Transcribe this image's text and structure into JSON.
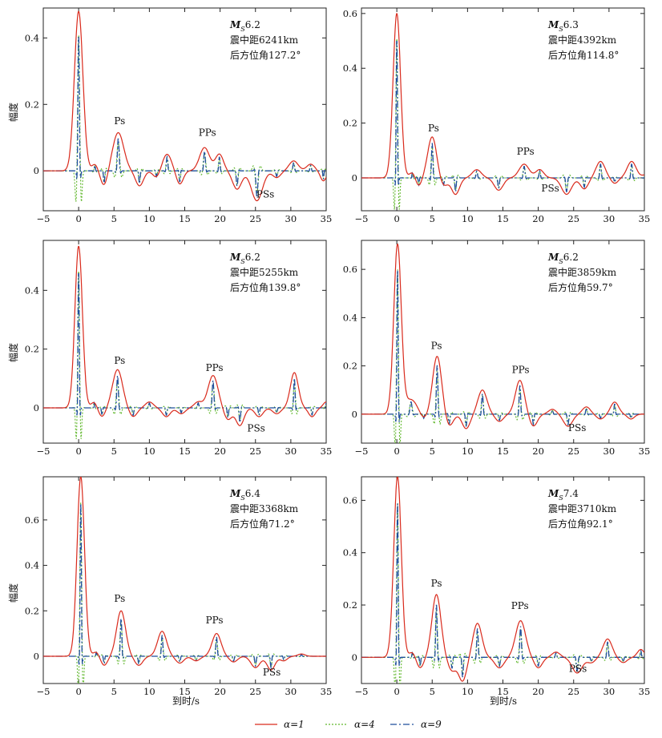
{
  "colors": {
    "alpha1": "#d92a1c",
    "alpha4": "#5fb72b",
    "alpha9": "#1f4e9c"
  },
  "axes": {
    "ylabel": "幅度",
    "xlabel": "到时/s"
  },
  "legend": {
    "alpha1": "α=1",
    "alpha4": "α=4",
    "alpha9": "α=9"
  },
  "chart_data": [
    {
      "type": "line",
      "title": "",
      "info": {
        "mag": "6.2",
        "distance": "震中距6241km",
        "baz": "后方位角127.2°"
      },
      "xlim": [
        -5,
        35
      ],
      "ylim": [
        -0.12,
        0.49
      ],
      "xticks": [
        -5,
        0,
        5,
        10,
        15,
        20,
        25,
        30,
        35
      ],
      "yticks": [
        0,
        0.2,
        0.4
      ],
      "phases": [
        {
          "label": "Ps",
          "x": 5.8,
          "y": 0.14
        },
        {
          "label": "PPs",
          "x": 18.2,
          "y": 0.105
        },
        {
          "label": "PSs",
          "x": 26.4,
          "y": -0.08
        }
      ],
      "components": [
        {
          "t": 0,
          "a": 0.48,
          "w": 0.85
        },
        {
          "t": 2.3,
          "a": 0.02,
          "w": 0.6
        },
        {
          "t": 3.6,
          "a": -0.045,
          "w": 0.7
        },
        {
          "t": 5.6,
          "a": 0.115,
          "w": 1.1
        },
        {
          "t": 8.6,
          "a": -0.045,
          "w": 0.8
        },
        {
          "t": 11,
          "a": -0.02,
          "w": 0.7
        },
        {
          "t": 12.5,
          "a": 0.05,
          "w": 0.9
        },
        {
          "t": 14.3,
          "a": -0.04,
          "w": 0.7
        },
        {
          "t": 17.8,
          "a": 0.07,
          "w": 1.0
        },
        {
          "t": 19.9,
          "a": 0.05,
          "w": 0.8
        },
        {
          "t": 22.4,
          "a": -0.055,
          "w": 0.9
        },
        {
          "t": 25.2,
          "a": -0.09,
          "w": 1.1
        },
        {
          "t": 28,
          "a": -0.02,
          "w": 0.8
        },
        {
          "t": 30.4,
          "a": 0.03,
          "w": 0.9
        },
        {
          "t": 32.8,
          "a": 0.02,
          "w": 0.8
        },
        {
          "t": 34.6,
          "a": -0.03,
          "w": 0.6
        }
      ]
    },
    {
      "type": "line",
      "title": "",
      "info": {
        "mag": "6.3",
        "distance": "震中距4392km",
        "baz": "后方位角114.8°"
      },
      "xlim": [
        -5,
        35
      ],
      "ylim": [
        -0.12,
        0.62
      ],
      "xticks": [
        -5,
        0,
        5,
        10,
        15,
        20,
        25,
        30,
        35
      ],
      "yticks": [
        0,
        0.2,
        0.4,
        0.6
      ],
      "phases": [
        {
          "label": "Ps",
          "x": 5.2,
          "y": 0.17
        },
        {
          "label": "PPs",
          "x": 18.2,
          "y": 0.085
        },
        {
          "label": "PSs",
          "x": 21.7,
          "y": -0.05
        }
      ],
      "components": [
        {
          "t": 0,
          "a": 0.6,
          "w": 0.75
        },
        {
          "t": 2.2,
          "a": 0.02,
          "w": 0.6
        },
        {
          "t": 3.1,
          "a": -0.03,
          "w": 0.6
        },
        {
          "t": 5,
          "a": 0.15,
          "w": 0.9
        },
        {
          "t": 6.6,
          "a": -0.03,
          "w": 0.8
        },
        {
          "t": 8.3,
          "a": -0.06,
          "w": 0.8
        },
        {
          "t": 11.3,
          "a": 0.03,
          "w": 0.9
        },
        {
          "t": 14.4,
          "a": -0.045,
          "w": 0.9
        },
        {
          "t": 18,
          "a": 0.05,
          "w": 1.0
        },
        {
          "t": 20.2,
          "a": 0.03,
          "w": 0.8
        },
        {
          "t": 24,
          "a": -0.06,
          "w": 1.0
        },
        {
          "t": 26.5,
          "a": -0.04,
          "w": 0.8
        },
        {
          "t": 28.8,
          "a": 0.06,
          "w": 0.9
        },
        {
          "t": 30.8,
          "a": -0.02,
          "w": 0.7
        },
        {
          "t": 33.2,
          "a": 0.06,
          "w": 0.9
        },
        {
          "t": 35.1,
          "a": 0.01,
          "w": 0.6
        }
      ]
    },
    {
      "type": "line",
      "title": "",
      "info": {
        "mag": "6.2",
        "distance": "震中距5255km",
        "baz": "后方位角139.8°"
      },
      "xlim": [
        -5,
        35
      ],
      "ylim": [
        -0.12,
        0.57
      ],
      "xticks": [
        -5,
        0,
        5,
        10,
        15,
        20,
        25,
        30,
        35
      ],
      "yticks": [
        0,
        0.2,
        0.4
      ],
      "phases": [
        {
          "label": "Ps",
          "x": 5.8,
          "y": 0.15
        },
        {
          "label": "PPs",
          "x": 19.2,
          "y": 0.125
        },
        {
          "label": "PSs",
          "x": 25.1,
          "y": -0.08
        }
      ],
      "components": [
        {
          "t": 0,
          "a": 0.55,
          "w": 0.75
        },
        {
          "t": 2.2,
          "a": 0.02,
          "w": 0.6
        },
        {
          "t": 3.3,
          "a": -0.03,
          "w": 0.7
        },
        {
          "t": 5.5,
          "a": 0.13,
          "w": 1.0
        },
        {
          "t": 7.7,
          "a": -0.03,
          "w": 0.8
        },
        {
          "t": 10,
          "a": 0.02,
          "w": 0.8
        },
        {
          "t": 12.4,
          "a": -0.03,
          "w": 0.8
        },
        {
          "t": 14.5,
          "a": -0.02,
          "w": 0.8
        },
        {
          "t": 16.9,
          "a": 0.02,
          "w": 0.8
        },
        {
          "t": 19,
          "a": 0.11,
          "w": 1.0
        },
        {
          "t": 21.1,
          "a": -0.04,
          "w": 0.8
        },
        {
          "t": 22.8,
          "a": -0.06,
          "w": 0.8
        },
        {
          "t": 25.5,
          "a": -0.03,
          "w": 0.8
        },
        {
          "t": 28,
          "a": -0.02,
          "w": 0.8
        },
        {
          "t": 30.5,
          "a": 0.12,
          "w": 0.8
        },
        {
          "t": 33,
          "a": -0.03,
          "w": 0.7
        },
        {
          "t": 35,
          "a": 0.02,
          "w": 0.6
        }
      ]
    },
    {
      "type": "line",
      "title": "",
      "info": {
        "mag": "6.2",
        "distance": "震中距3859km",
        "baz": "后方位角59.7°"
      },
      "xlim": [
        -5,
        35
      ],
      "ylim": [
        -0.12,
        0.72
      ],
      "xticks": [
        -5,
        0,
        5,
        10,
        15,
        20,
        25,
        30,
        35
      ],
      "yticks": [
        0,
        0.2,
        0.4,
        0.6
      ],
      "phases": [
        {
          "label": "Ps",
          "x": 5.6,
          "y": 0.27
        },
        {
          "label": "PPs",
          "x": 17.5,
          "y": 0.17
        },
        {
          "label": "PSs",
          "x": 25.5,
          "y": -0.07
        }
      ],
      "components": [
        {
          "t": 0.1,
          "a": 0.7,
          "w": 0.75
        },
        {
          "t": 2,
          "a": 0.06,
          "w": 1.2
        },
        {
          "t": 3.8,
          "a": -0.02,
          "w": 0.7
        },
        {
          "t": 5.7,
          "a": 0.24,
          "w": 0.9
        },
        {
          "t": 7.4,
          "a": -0.05,
          "w": 0.8
        },
        {
          "t": 9.8,
          "a": -0.06,
          "w": 0.8
        },
        {
          "t": 12.1,
          "a": 0.1,
          "w": 0.9
        },
        {
          "t": 14.5,
          "a": -0.03,
          "w": 0.8
        },
        {
          "t": 17.4,
          "a": 0.14,
          "w": 0.9
        },
        {
          "t": 19.3,
          "a": -0.05,
          "w": 0.8
        },
        {
          "t": 22,
          "a": 0.02,
          "w": 0.8
        },
        {
          "t": 24.2,
          "a": -0.05,
          "w": 0.9
        },
        {
          "t": 26.8,
          "a": 0.03,
          "w": 0.8
        },
        {
          "t": 28.8,
          "a": -0.02,
          "w": 0.8
        },
        {
          "t": 30.8,
          "a": 0.05,
          "w": 0.8
        },
        {
          "t": 33.1,
          "a": -0.02,
          "w": 0.7
        }
      ]
    },
    {
      "type": "line",
      "title": "",
      "info": {
        "mag": "6.4",
        "distance": "震中距3368km",
        "baz": "后方位角71.2°"
      },
      "xlim": [
        -5,
        35
      ],
      "ylim": [
        -0.12,
        0.79
      ],
      "xticks": [
        -5,
        0,
        5,
        10,
        15,
        20,
        25,
        30,
        35
      ],
      "yticks": [
        0,
        0.2,
        0.4,
        0.6
      ],
      "phases": [
        {
          "label": "Ps",
          "x": 5.8,
          "y": 0.24
        },
        {
          "label": "PPs",
          "x": 19.2,
          "y": 0.145
        },
        {
          "label": "PSs",
          "x": 27.3,
          "y": -0.085
        }
      ],
      "components": [
        {
          "t": 0.3,
          "a": 0.79,
          "w": 0.75
        },
        {
          "t": 2.5,
          "a": 0.02,
          "w": 0.6
        },
        {
          "t": 3.6,
          "a": -0.04,
          "w": 0.7
        },
        {
          "t": 6,
          "a": 0.2,
          "w": 0.9
        },
        {
          "t": 8.5,
          "a": -0.04,
          "w": 0.8
        },
        {
          "t": 11.8,
          "a": 0.11,
          "w": 0.9
        },
        {
          "t": 14.3,
          "a": -0.03,
          "w": 0.8
        },
        {
          "t": 16.6,
          "a": -0.02,
          "w": 0.8
        },
        {
          "t": 19.5,
          "a": 0.1,
          "w": 0.9
        },
        {
          "t": 21.9,
          "a": -0.025,
          "w": 0.8
        },
        {
          "t": 25,
          "a": -0.05,
          "w": 0.9
        },
        {
          "t": 27.2,
          "a": -0.06,
          "w": 0.8
        },
        {
          "t": 29,
          "a": -0.02,
          "w": 0.7
        },
        {
          "t": 31.5,
          "a": 0.01,
          "w": 0.7
        }
      ]
    },
    {
      "type": "line",
      "title": "",
      "info": {
        "mag": "7.4",
        "distance": "震中距3710km",
        "baz": "后方位角92.1°"
      },
      "xlim": [
        -5,
        35
      ],
      "ylim": [
        -0.1,
        0.69
      ],
      "xticks": [
        -5,
        0,
        5,
        10,
        15,
        20,
        25,
        30,
        35
      ],
      "yticks": [
        0,
        0.2,
        0.4,
        0.6
      ],
      "phases": [
        {
          "label": "Ps",
          "x": 5.6,
          "y": 0.27
        },
        {
          "label": "PPs",
          "x": 17.4,
          "y": 0.185
        },
        {
          "label": "PSs",
          "x": 25.6,
          "y": -0.055
        }
      ],
      "components": [
        {
          "t": 0.1,
          "a": 0.69,
          "w": 0.75
        },
        {
          "t": 2.2,
          "a": 0.02,
          "w": 0.6
        },
        {
          "t": 3.3,
          "a": -0.04,
          "w": 0.7
        },
        {
          "t": 5.6,
          "a": 0.24,
          "w": 0.9
        },
        {
          "t": 7.8,
          "a": -0.05,
          "w": 0.8
        },
        {
          "t": 9.3,
          "a": -0.09,
          "w": 0.8
        },
        {
          "t": 11.4,
          "a": 0.13,
          "w": 0.9
        },
        {
          "t": 14.5,
          "a": -0.04,
          "w": 0.9
        },
        {
          "t": 17.5,
          "a": 0.14,
          "w": 1.0
        },
        {
          "t": 20,
          "a": -0.04,
          "w": 0.8
        },
        {
          "t": 22.5,
          "a": 0.02,
          "w": 0.8
        },
        {
          "t": 25.5,
          "a": -0.06,
          "w": 1.0
        },
        {
          "t": 27.5,
          "a": -0.02,
          "w": 0.8
        },
        {
          "t": 29.8,
          "a": 0.07,
          "w": 0.9
        },
        {
          "t": 32,
          "a": -0.02,
          "w": 0.8
        },
        {
          "t": 34.5,
          "a": 0.03,
          "w": 0.7
        }
      ]
    }
  ]
}
